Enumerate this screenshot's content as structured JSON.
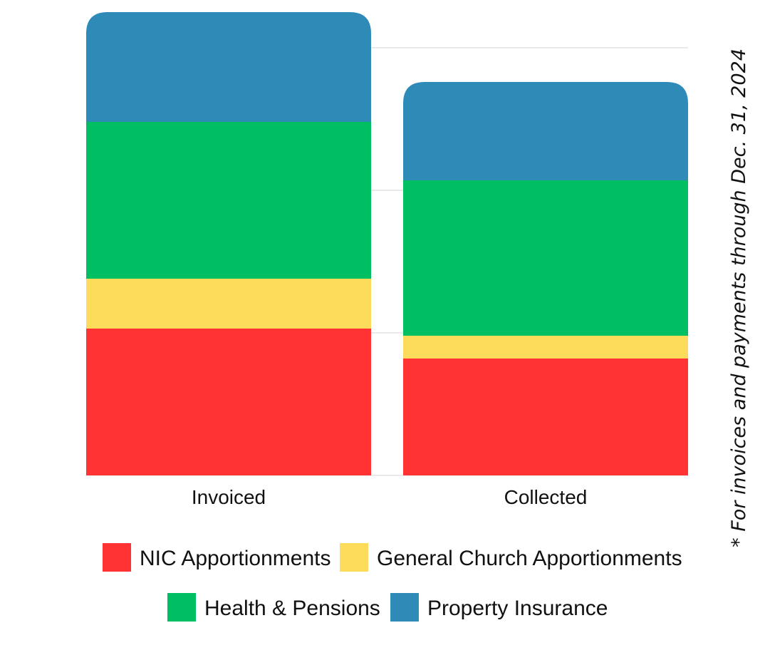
{
  "chart_data": {
    "type": "bar",
    "stacked": true,
    "categories": [
      "Invoiced",
      "Collected"
    ],
    "series": [
      {
        "name": "NIC Apportionments",
        "color": "#ff3333",
        "values": [
          1.03,
          0.82
        ]
      },
      {
        "name": "General Church Apportionments",
        "color": "#fddc5c",
        "values": [
          0.35,
          0.16
        ]
      },
      {
        "name": "Health & Pensions",
        "color": "#00bf63",
        "values": [
          1.1,
          1.09
        ]
      },
      {
        "name": "Property Insurance",
        "color": "#2e8bb8",
        "values": [
          0.77,
          0.69
        ]
      }
    ],
    "ylim": [
      0,
      3.0
    ],
    "gridlines": [
      1,
      2,
      3
    ],
    "grid": true,
    "legend_position": "bottom",
    "footnote": "* For invoices and payments through Dec. 31, 2024"
  }
}
